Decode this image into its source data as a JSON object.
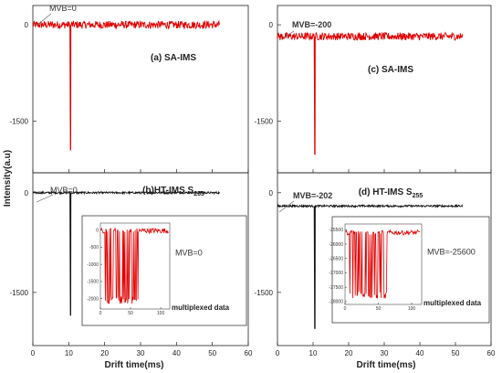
{
  "figure": {
    "ylabel": "Intensity(a.u)",
    "xlabel": "Drift time(ms)"
  },
  "chart_data": [
    {
      "id": "a",
      "type": "line",
      "label": "(a) SA-IMS",
      "annotation": "MVB=0",
      "color": "#e00000",
      "yticks": [
        0,
        -1500
      ],
      "baseline": 0,
      "noise": 60,
      "x_range": [
        0,
        52
      ],
      "peak": {
        "x": 10.5,
        "y": -1950
      }
    },
    {
      "id": "b",
      "type": "line",
      "label": "(b)HT-IMS S",
      "label_sub": "255",
      "annotation": "MVB=0",
      "color": "#111111",
      "yticks": [
        0,
        -1500
      ],
      "baseline": 0,
      "noise": 15,
      "x_range": [
        0,
        52
      ],
      "peak": {
        "x": 10.5,
        "y": -1850
      },
      "inset": {
        "annotation": "MVB=0",
        "label": "multiplexed data",
        "color": "#e00000",
        "xticks": [
          0,
          50,
          100
        ],
        "yticks": [
          0,
          -500,
          -1000,
          -1500,
          -2000
        ],
        "ylim": [
          -2300,
          200
        ],
        "xlim": [
          0,
          115
        ],
        "baseline": -20,
        "mux_range": [
          7,
          63
        ],
        "mux_low": -2150
      }
    },
    {
      "id": "c",
      "type": "line",
      "label": "(c) SA-IMS",
      "annotation": "MVB=-200",
      "color": "#e00000",
      "yticks": [
        0,
        -1500
      ],
      "baseline": -180,
      "noise": 60,
      "x_range": [
        0,
        52
      ],
      "peak": {
        "x": 10.5,
        "y": -2020
      }
    },
    {
      "id": "d",
      "type": "line",
      "label": "(d) HT-IMS S",
      "label_sub": "255",
      "annotation": "MVB=-202",
      "color": "#111111",
      "yticks": [
        0,
        -1500
      ],
      "baseline": -200,
      "noise": 15,
      "x_range": [
        0,
        52
      ],
      "peak": {
        "x": 10.5,
        "y": -2050
      },
      "inset": {
        "annotation": "MVB=-25600",
        "label": "multiplexed data",
        "color": "#e00000",
        "xticks": [
          0,
          50,
          100
        ],
        "yticks": [
          -25500,
          -26000,
          -26500,
          -27000,
          -27500,
          -28000
        ],
        "ylim": [
          -28100,
          -25300
        ],
        "xlim": [
          0,
          115
        ],
        "baseline": -25600,
        "mux_range": [
          7,
          63
        ],
        "mux_low": -27900
      }
    }
  ],
  "x_ticks": [
    0,
    10,
    20,
    30,
    40,
    50,
    60
  ],
  "ylim": [
    -2300,
    300
  ],
  "xlim": [
    0,
    60
  ]
}
